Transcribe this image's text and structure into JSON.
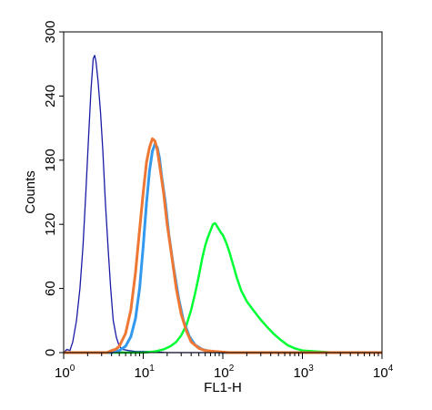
{
  "chart_data": {
    "type": "line",
    "title": "",
    "xlabel": "FL1-H",
    "ylabel": "Counts",
    "x_scale": "log",
    "xlim": [
      1,
      10000
    ],
    "ylim": [
      0,
      300
    ],
    "x_ticks": [
      {
        "base": "10",
        "exp": "0",
        "value": 1
      },
      {
        "base": "10",
        "exp": "1",
        "value": 10
      },
      {
        "base": "10",
        "exp": "2",
        "value": 100
      },
      {
        "base": "10",
        "exp": "3",
        "value": 1000
      },
      {
        "base": "10",
        "exp": "4",
        "value": 10000
      }
    ],
    "y_ticks": [
      "0",
      "60",
      "120",
      "180",
      "240",
      "300"
    ],
    "grid": false,
    "legend": "none",
    "series": [
      {
        "color": "#1a1aa6",
        "stroke_width": 1.3,
        "points": [
          [
            1,
            0
          ],
          [
            1.1,
            3
          ],
          [
            1.2,
            2
          ],
          [
            1.3,
            10
          ],
          [
            1.45,
            30
          ],
          [
            1.6,
            60
          ],
          [
            1.75,
            100
          ],
          [
            1.9,
            150
          ],
          [
            2.05,
            200
          ],
          [
            2.2,
            245
          ],
          [
            2.35,
            275
          ],
          [
            2.45,
            278
          ],
          [
            2.55,
            272
          ],
          [
            2.7,
            255
          ],
          [
            2.9,
            225
          ],
          [
            3.1,
            190
          ],
          [
            3.35,
            140
          ],
          [
            3.6,
            100
          ],
          [
            3.9,
            60
          ],
          [
            4.2,
            30
          ],
          [
            4.6,
            14
          ],
          [
            5.0,
            6
          ],
          [
            5.5,
            3
          ],
          [
            6.5,
            2
          ],
          [
            8,
            1
          ],
          [
            12,
            1
          ],
          [
            20,
            0
          ],
          [
            10000,
            0
          ]
        ]
      },
      {
        "color": "#00ff33",
        "stroke_width": 2.5,
        "points": [
          [
            1,
            0
          ],
          [
            10,
            0
          ],
          [
            14,
            1
          ],
          [
            18,
            3
          ],
          [
            22,
            6
          ],
          [
            26,
            10
          ],
          [
            30,
            16
          ],
          [
            35,
            26
          ],
          [
            40,
            40
          ],
          [
            45,
            56
          ],
          [
            50,
            72
          ],
          [
            55,
            88
          ],
          [
            60,
            100
          ],
          [
            65,
            108
          ],
          [
            70,
            114
          ],
          [
            75,
            120
          ],
          [
            80,
            121
          ],
          [
            85,
            118
          ],
          [
            90,
            115
          ],
          [
            95,
            112
          ],
          [
            100,
            110
          ],
          [
            110,
            103
          ],
          [
            120,
            95
          ],
          [
            135,
            82
          ],
          [
            150,
            70
          ],
          [
            170,
            58
          ],
          [
            200,
            48
          ],
          [
            240,
            40
          ],
          [
            290,
            32
          ],
          [
            350,
            25
          ],
          [
            430,
            18
          ],
          [
            530,
            12
          ],
          [
            650,
            7
          ],
          [
            800,
            4
          ],
          [
            1000,
            2
          ],
          [
            1500,
            1
          ],
          [
            2500,
            0
          ],
          [
            10000,
            0
          ]
        ]
      },
      {
        "color": "#3399ee",
        "stroke_width": 3,
        "points": [
          [
            1,
            0
          ],
          [
            4,
            0
          ],
          [
            5,
            2
          ],
          [
            6,
            6
          ],
          [
            7,
            15
          ],
          [
            8,
            32
          ],
          [
            9,
            60
          ],
          [
            10,
            100
          ],
          [
            11,
            140
          ],
          [
            12,
            170
          ],
          [
            13,
            188
          ],
          [
            14,
            195
          ],
          [
            15,
            192
          ],
          [
            16,
            182
          ],
          [
            17,
            165
          ],
          [
            19,
            140
          ],
          [
            21,
            110
          ],
          [
            24,
            80
          ],
          [
            28,
            50
          ],
          [
            32,
            30
          ],
          [
            38,
            15
          ],
          [
            45,
            7
          ],
          [
            55,
            3
          ],
          [
            70,
            1
          ],
          [
            100,
            0
          ],
          [
            10000,
            0
          ]
        ]
      },
      {
        "color": "#ee7733",
        "stroke_width": 3,
        "points": [
          [
            1,
            0
          ],
          [
            3.5,
            0
          ],
          [
            4,
            2
          ],
          [
            4.5,
            3
          ],
          [
            5,
            6
          ],
          [
            6,
            18
          ],
          [
            7,
            40
          ],
          [
            8,
            75
          ],
          [
            9,
            115
          ],
          [
            10,
            150
          ],
          [
            11,
            178
          ],
          [
            12,
            192
          ],
          [
            13,
            200
          ],
          [
            14,
            198
          ],
          [
            15,
            190
          ],
          [
            16,
            176
          ],
          [
            18,
            150
          ],
          [
            20,
            120
          ],
          [
            23,
            88
          ],
          [
            26,
            60
          ],
          [
            30,
            36
          ],
          [
            35,
            20
          ],
          [
            40,
            10
          ],
          [
            50,
            4
          ],
          [
            60,
            2
          ],
          [
            80,
            1
          ],
          [
            120,
            0
          ],
          [
            10000,
            0
          ]
        ]
      }
    ]
  }
}
